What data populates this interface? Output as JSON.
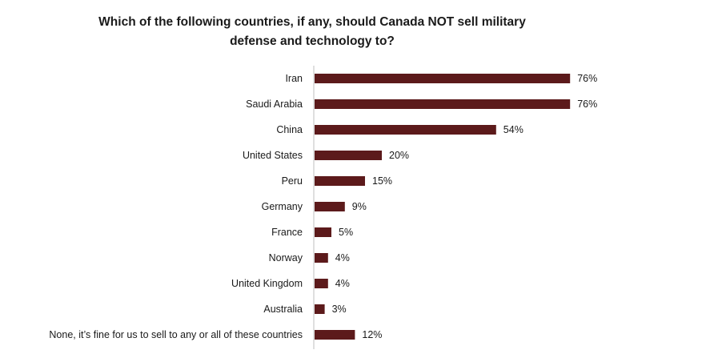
{
  "chart_data": {
    "type": "bar",
    "orientation": "horizontal",
    "title_lines": [
      "Which of the following countries, if any, should Canada NOT sell military",
      "defense and technology to?"
    ],
    "title": "Which of the following countries, if any, should Canada NOT sell military defense and technology to?",
    "categories": [
      "Iran",
      "Saudi Arabia",
      "China",
      "United States",
      "Peru",
      "Germany",
      "France",
      "Norway",
      "United Kingdom",
      "Australia",
      "None, it’s fine for us to sell to any or all of these countries"
    ],
    "values": [
      76,
      76,
      54,
      20,
      15,
      9,
      5,
      4,
      4,
      3,
      12
    ],
    "value_labels": [
      "76%",
      "76%",
      "54%",
      "20%",
      "15%",
      "9%",
      "5%",
      "4%",
      "4%",
      "3%",
      "12%"
    ],
    "unit": "%",
    "bar_color": "#5c1a1b",
    "axis_line_color": "#bfbfbf",
    "xlim": [
      0,
      100
    ],
    "grid": false,
    "legend": "none"
  }
}
